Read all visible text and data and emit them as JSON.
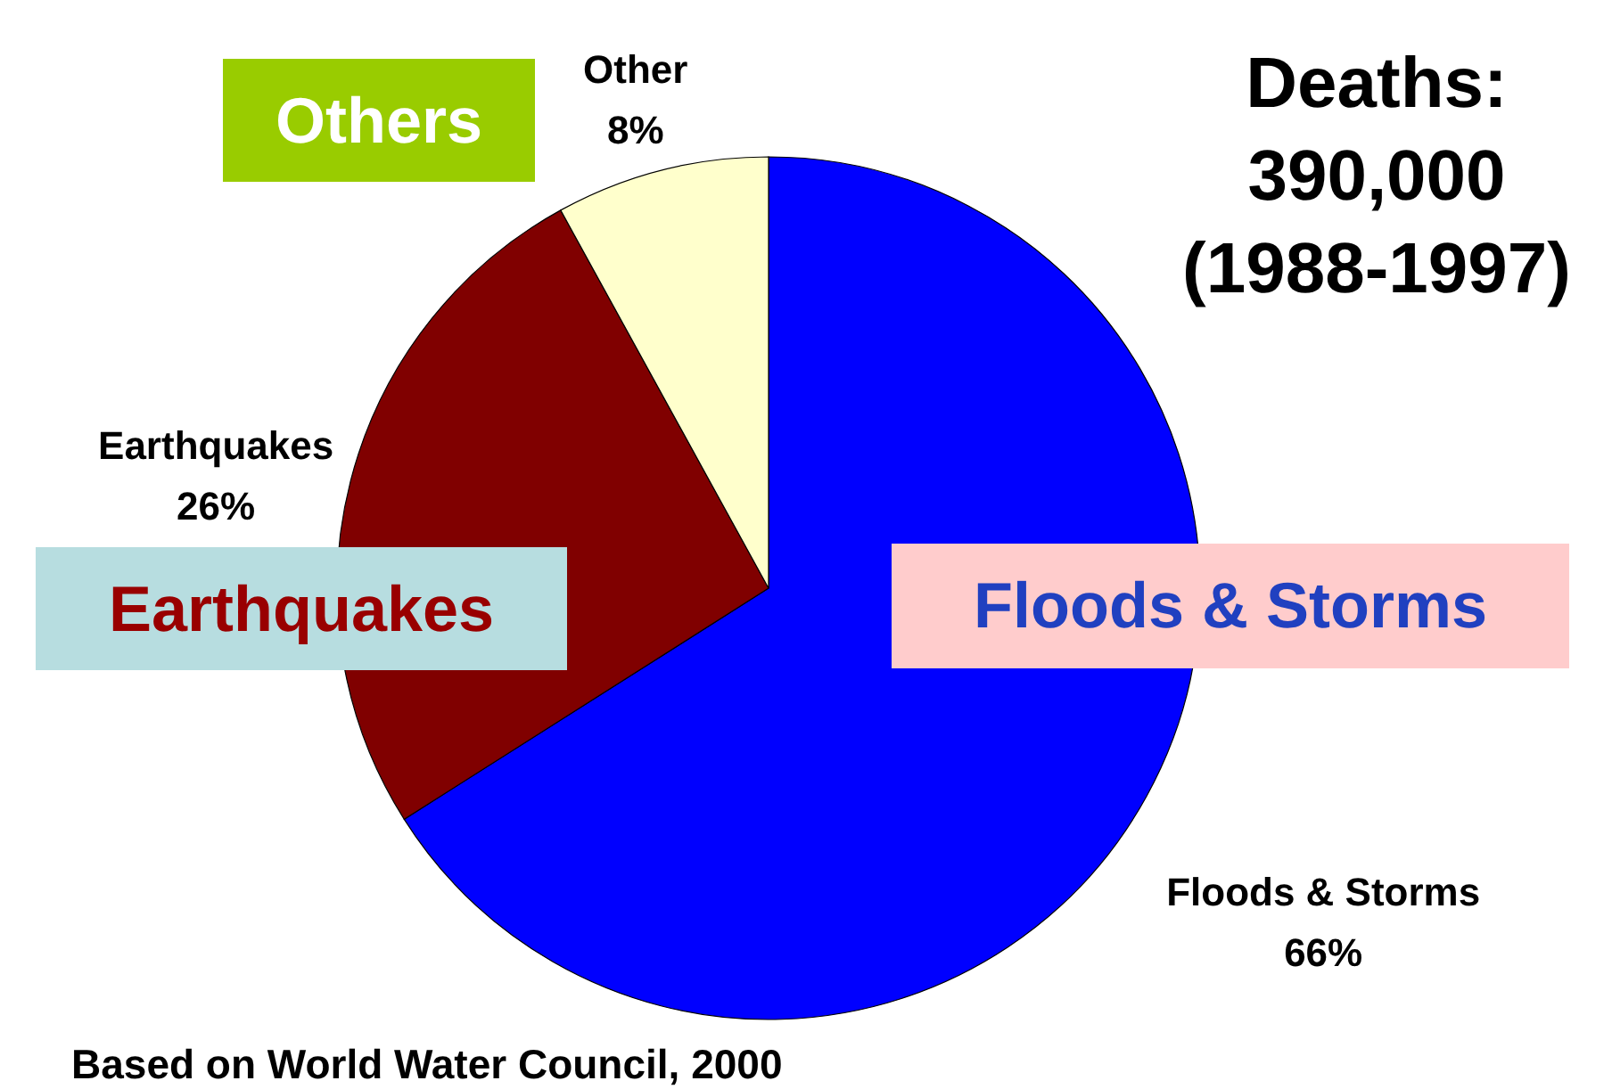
{
  "chart_data": {
    "type": "pie",
    "title": "Deaths: 390,000 (1988-1997)",
    "categories": [
      "Floods & Storms",
      "Earthquakes",
      "Other"
    ],
    "values": [
      66,
      26,
      8
    ],
    "colors": [
      "#0000ff",
      "#800000",
      "#ffffcc"
    ],
    "value_labels": [
      "66%",
      "26%",
      "8%"
    ],
    "annotations": [
      "Others",
      "Earthquakes",
      "Floods & Storms",
      "Based on World Water Council, 2000"
    ]
  }
}
